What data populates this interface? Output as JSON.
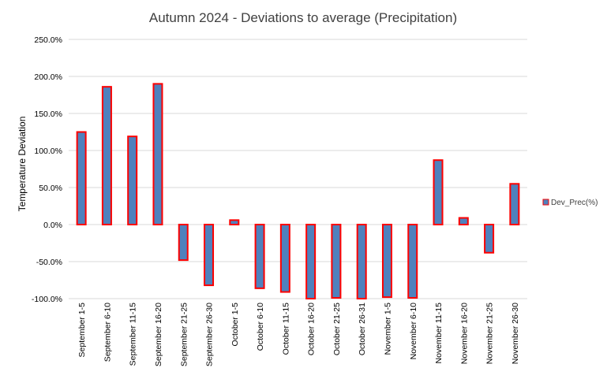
{
  "chart_data": {
    "type": "bar",
    "title": "Autumn 2024 - Deviations to average (Precipitation)",
    "ylabel": "Temperature Deviation",
    "xlabel": "",
    "ylim": [
      -100,
      250
    ],
    "ytick_step": 50,
    "ytick_labels": [
      "-100.0%",
      "-50.0%",
      "0.0%",
      "50.0%",
      "100.0%",
      "150.0%",
      "200.0%",
      "250.0%"
    ],
    "grid": true,
    "legend_position": "right",
    "categories": [
      "September 1-5",
      "September 6-10",
      "September 11-15",
      "September 16-20",
      "September 21-25",
      "September 26-30",
      "October 1-5",
      "October 6-10",
      "October 11-15",
      "October 16-20",
      "October 21-25",
      "October 26-31",
      "November 1-5",
      "November 6-10",
      "November 11-15",
      "November 16-20",
      "November 21-25",
      "November 26-30"
    ],
    "series": [
      {
        "name": "Dev_Prec(%)",
        "fill_color": "#4f81bd",
        "edge_color": "#ff0000",
        "values": [
          125,
          186,
          119,
          190,
          -48,
          -82,
          6,
          -86,
          -91,
          -100,
          -99,
          -100,
          -98,
          -99,
          87,
          9,
          -38,
          55
        ]
      }
    ]
  }
}
